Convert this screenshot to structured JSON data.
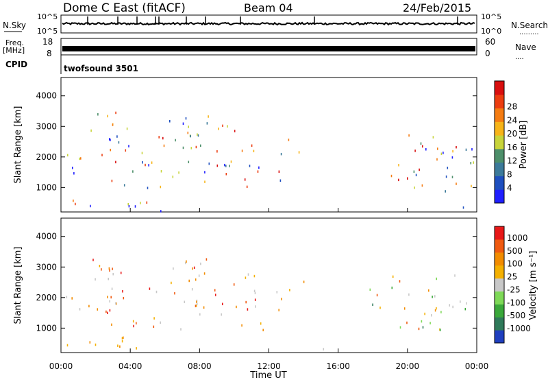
{
  "header": {
    "station": "Dome C East (fitACF)",
    "beam": "Beam 04",
    "date": "24/Feb/2015"
  },
  "nsky_panel": {
    "left_label": "N.Sky",
    "right_label": "N.Search",
    "right_legend": ".........",
    "ticks_top": "10^5",
    "ticks_bottom": "10^0"
  },
  "freq_panel": {
    "left_label": "Freq.",
    "left_unit": "[MHz]",
    "left_top": "18",
    "left_bottom": "8",
    "right_label": "Nave",
    "right_legend": "....",
    "right_top": "60",
    "right_bottom": "0"
  },
  "cpid_panel": {
    "label": "CPID",
    "value": "twofsound 3501"
  },
  "chart_data": [
    {
      "type": "heatmap",
      "name": "power",
      "ylabel": "Slant Range [km]",
      "yticks": [
        "1000",
        "2000",
        "3000",
        "4000"
      ],
      "ylim": [
        200,
        4600
      ],
      "xlim": [
        0,
        24
      ],
      "colorbar_label": "Power [dB]",
      "colorbar_ticks": [
        "4",
        "8",
        "12",
        "16",
        "20",
        "24",
        "28"
      ],
      "colors": [
        "#1f1fff",
        "#1e4fbf",
        "#3c7a9a",
        "#4d8f6a",
        "#c8d43a",
        "#f7b418",
        "#f57c12",
        "#ec3d10",
        "#d90f0f"
      ],
      "grid": false
    },
    {
      "type": "heatmap",
      "name": "velocity",
      "ylabel": "Slant Range [km]",
      "yticks": [
        "1000",
        "2000",
        "3000",
        "4000"
      ],
      "ylim": [
        200,
        4600
      ],
      "xlim": [
        0,
        24
      ],
      "xticks": [
        "00:00",
        "04:00",
        "08:00",
        "12:00",
        "16:00",
        "20:00",
        "00:00"
      ],
      "xlabel": "Time UT",
      "colorbar_label": "Velocity [m s⁻¹]",
      "colorbar_ticks": [
        "1000",
        "500",
        "100",
        "25",
        "-25",
        "-100",
        "-500",
        "-1000"
      ],
      "colors": [
        "#1f3fbf",
        "#2f7a5a",
        "#3aa83a",
        "#7ed957",
        "#c8c8c8",
        "#f4b000",
        "#f28c00",
        "#f05a10",
        "#e81818"
      ],
      "grid": false
    }
  ]
}
